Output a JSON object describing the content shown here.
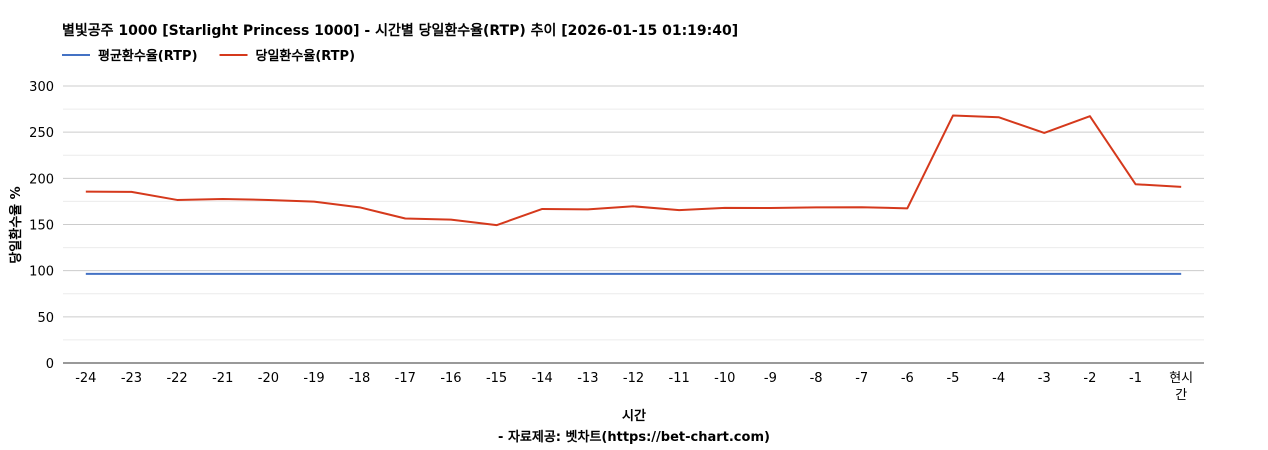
{
  "chart_data": {
    "type": "line",
    "title": "별빛공주 1000 [Starlight Princess 1000] - 시간별 당일환수율(RTP) 추이 [2026-01-15 01:19:40]",
    "xlabel": "시간",
    "ylabel": "당일환수율 %",
    "footnote": "- 자료제공: 벳차트(https://bet-chart.com)",
    "categories": [
      "-24",
      "-23",
      "-22",
      "-21",
      "-20",
      "-19",
      "-18",
      "-17",
      "-16",
      "-15",
      "-14",
      "-13",
      "-12",
      "-11",
      "-10",
      "-9",
      "-8",
      "-7",
      "-6",
      "-5",
      "-4",
      "-3",
      "-2",
      "-1",
      "현시간"
    ],
    "ylim": [
      0,
      300
    ],
    "yticks": [
      0,
      50,
      100,
      150,
      200,
      250,
      300
    ],
    "grid": true,
    "legend_position": "top-left",
    "series": [
      {
        "name": "평균환수율(RTP)",
        "color": "#4472C4",
        "values": [
          96.5,
          96.5,
          96.5,
          96.5,
          96.5,
          96.5,
          96.5,
          96.5,
          96.5,
          96.5,
          96.5,
          96.5,
          96.5,
          96.5,
          96.5,
          96.5,
          96.5,
          96.5,
          96.5,
          96.5,
          96.5,
          96.5,
          96.5,
          96.5,
          96.5
        ]
      },
      {
        "name": "당일환수율(RTP)",
        "color": "#D5391C",
        "values": [
          185.6,
          185.3,
          176.6,
          177.6,
          176.6,
          174.8,
          168.6,
          156.5,
          155.3,
          149.3,
          166.8,
          166.4,
          169.7,
          165.6,
          168.0,
          167.8,
          168.6,
          168.7,
          167.5,
          268.0,
          266.2,
          249.2,
          267.3,
          193.6,
          190.8
        ]
      }
    ]
  }
}
